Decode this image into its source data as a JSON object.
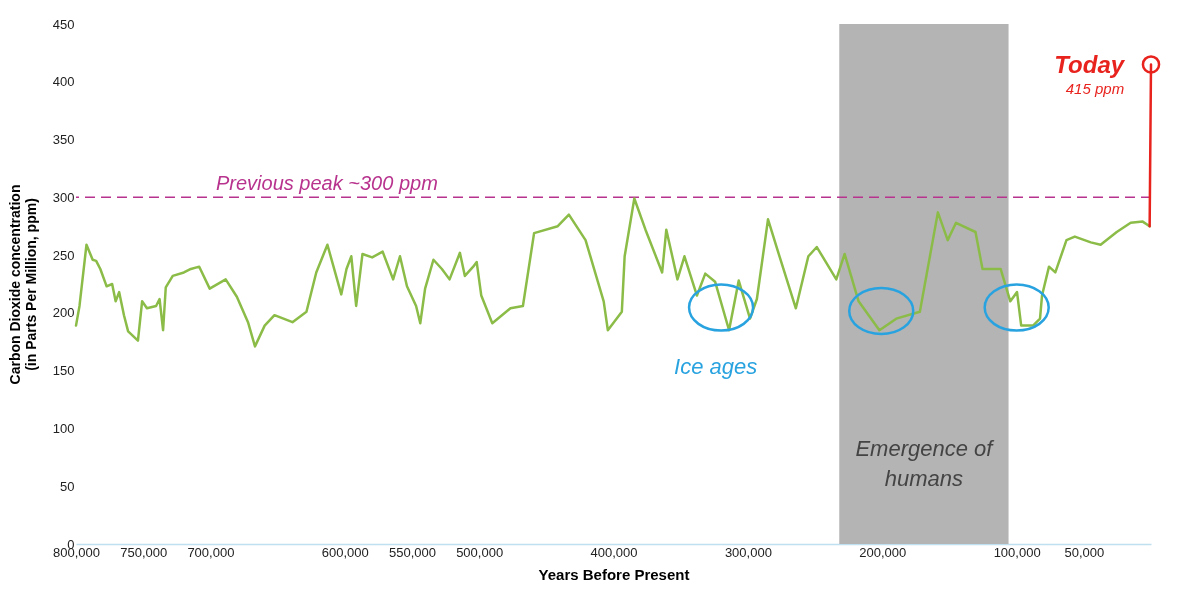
{
  "chart_data": {
    "type": "line",
    "xlabel": "Years Before Present",
    "ylabel": "Carbon Dioxide concentration (in Parts Per Million, ppm)",
    "xlim": [
      800000,
      0
    ],
    "xticks": [
      {
        "value": 800000,
        "label": "800,000"
      },
      {
        "value": 750000,
        "label": "750,000"
      },
      {
        "value": 700000,
        "label": "700,000"
      },
      {
        "value": 600000,
        "label": "600,000"
      },
      {
        "value": 550000,
        "label": "550,000"
      },
      {
        "value": 500000,
        "label": "500,000"
      },
      {
        "value": 400000,
        "label": "400,000"
      },
      {
        "value": 300000,
        "label": "300,000"
      },
      {
        "value": 200000,
        "label": "200,000"
      },
      {
        "value": 100000,
        "label": "100,000"
      },
      {
        "value": 50000,
        "label": "50,000"
      }
    ],
    "ylim": [
      0,
      450
    ],
    "yticks": [
      0,
      50,
      100,
      150,
      200,
      250,
      300,
      350,
      400,
      450
    ],
    "series": [
      {
        "color": "#8cbc48",
        "x": [
          800000,
          797400,
          792200,
          787600,
          785000,
          781900,
          777200,
          773100,
          770500,
          767900,
          764300,
          761200,
          753900,
          750800,
          747200,
          740400,
          737800,
          735200,
          733200,
          728000,
          719700,
          714500,
          708300,
          700500,
          688600,
          680300,
          672000,
          666800,
          659600,
          652300,
          638900,
          628500,
          621200,
          612900,
          602600,
          598700,
          595100,
          591500,
          586800,
          579600,
          571800,
          564000,
          558900,
          553700,
          546900,
          543800,
          540200,
          534000,
          527700,
          522000,
          514300,
          510600,
          504400,
          501800,
          498400,
          490200,
          476700,
          467400,
          459100,
          441500,
          433200,
          420800,
          407300,
          404200,
          393800,
          391700,
          384500,
          376200,
          363800,
          360700,
          352400,
          347200,
          337900,
          331700,
          324400,
          314000,
          306800,
          298400,
          293300,
          285000,
          275700,
          264300,
          255000,
          248700,
          234200,
          228000,
          217600,
          202100,
          189600,
          172000,
          158600,
          151300,
          145100,
          130600,
          125400,
          111900,
          104700,
          99700,
          96600,
          87800,
          82600,
          81100,
          75900,
          71200,
          62900,
          56700,
          44800,
          37500,
          25500,
          15100,
          6200,
          1000
        ],
        "values": [
          189,
          206,
          259,
          246,
          245,
          238,
          223,
          225,
          210,
          218,
          198,
          184,
          176,
          210,
          204,
          206,
          212,
          185,
          222,
          232,
          235,
          238,
          240,
          221,
          229,
          214,
          192,
          171,
          189,
          198,
          192,
          201,
          235,
          259,
          216,
          238,
          249,
          206,
          251,
          248,
          253,
          229,
          249,
          223,
          206,
          191,
          221,
          246,
          238,
          229,
          252,
          232,
          240,
          244,
          215,
          191,
          204,
          206,
          269,
          275,
          285,
          263,
          210,
          185,
          201,
          249,
          299,
          272,
          235,
          272,
          229,
          249,
          215,
          234,
          227,
          185,
          228,
          195,
          212,
          281,
          246,
          204,
          249,
          257,
          229,
          251,
          210,
          185,
          195,
          201,
          287,
          263,
          278,
          270,
          238,
          238,
          210,
          218,
          189,
          189,
          195,
          215,
          240,
          235,
          263,
          266,
          261,
          259,
          270,
          278,
          279,
          275
        ]
      },
      {
        "type": "line",
        "color": "#e8231e",
        "x": [
          1000,
          0
        ],
        "values": [
          275,
          415
        ]
      },
      {
        "type": "scatter",
        "color": "#e8231e",
        "marker": "circle",
        "x": [
          0
        ],
        "values": [
          415
        ]
      }
    ],
    "ref_lines": [
      {
        "axis": "y",
        "value": 300,
        "label": "Previous peak ~300 ppm",
        "color": "#b8338e",
        "line_style": "dashed"
      }
    ],
    "bands": [
      {
        "axis": "x",
        "from": 232000,
        "to": 106000,
        "label": "Emergence of humans",
        "color": "#b4b4b4"
      }
    ],
    "annotations": [
      "Ice ages",
      "Today",
      "415 ppm"
    ]
  }
}
